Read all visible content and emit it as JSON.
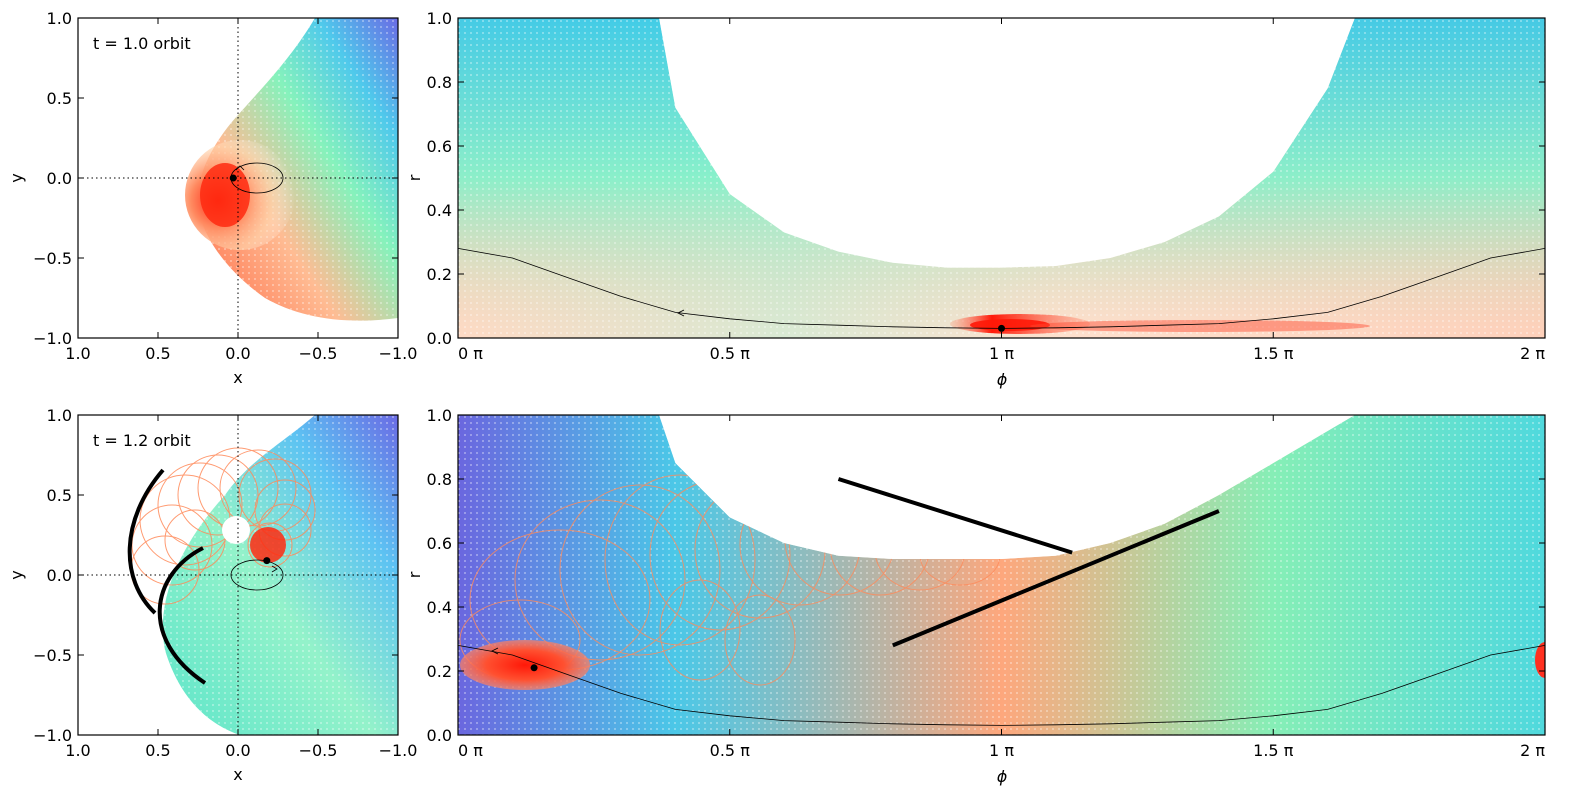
{
  "figure": {
    "description": "Four-panel figure: xy projections (left) and r-phi unwrapped views (right) of a particle cloud at two times"
  },
  "colors": {
    "hot": "#ff2a10",
    "warm": "#ff9a6a",
    "cool": "#60f0b8",
    "cyan": "#30c8e8",
    "blue": "#5a58e8",
    "ring": "#ff8a5a",
    "orbit": "#000000"
  },
  "chart_data": [
    {
      "id": "top-left",
      "type": "scatter",
      "annotation": "t = 1.0 orbit",
      "xlabel": "x",
      "ylabel": "y",
      "xlim": [
        1.0,
        -1.0
      ],
      "ylim": [
        -1.0,
        1.0
      ],
      "xticks": [
        "1.0",
        "0.5",
        "0.0",
        "−0.5",
        "−1.0"
      ],
      "yticks": [
        "−1.0",
        "−0.5",
        "0.0",
        "0.5",
        "1.0"
      ],
      "marker": {
        "x": 0.03,
        "y": 0.0
      },
      "grid": "dotted axes through origin"
    },
    {
      "id": "top-right",
      "type": "scatter",
      "xlabel": "ϕ",
      "ylabel": "r",
      "xlim": [
        0,
        2
      ],
      "ylim": [
        0.0,
        1.0
      ],
      "xticks": [
        "0 π",
        "0.5 π",
        "1 π",
        "1.5 π",
        "2 π"
      ],
      "yticks": [
        "0.0",
        "0.2",
        "0.4",
        "0.6",
        "0.8",
        "1.0"
      ],
      "orbit_line": {
        "phi": [
          0,
          0.1,
          0.2,
          0.3,
          0.4,
          0.5,
          0.6,
          0.7,
          0.8,
          0.9,
          1.0,
          1.1,
          1.2,
          1.3,
          1.4,
          1.5,
          1.6,
          1.7,
          1.8,
          1.9,
          2.0
        ],
        "r": [
          0.28,
          0.25,
          0.19,
          0.13,
          0.08,
          0.06,
          0.045,
          0.04,
          0.035,
          0.032,
          0.03,
          0.032,
          0.035,
          0.04,
          0.045,
          0.06,
          0.08,
          0.13,
          0.19,
          0.25,
          0.28
        ]
      },
      "marker": {
        "phi": 1.0,
        "r": 0.03
      },
      "envelope": {
        "phi": [
          0.37,
          0.4,
          0.5,
          0.6,
          0.7,
          0.8,
          0.9,
          1.0,
          1.1,
          1.2,
          1.3,
          1.4,
          1.5,
          1.6,
          1.65
        ],
        "r": [
          1.0,
          0.72,
          0.45,
          0.33,
          0.27,
          0.235,
          0.22,
          0.22,
          0.225,
          0.25,
          0.3,
          0.38,
          0.52,
          0.78,
          1.0
        ]
      }
    },
    {
      "id": "bottom-left",
      "type": "scatter",
      "annotation": "t = 1.2 orbit",
      "xlabel": "x",
      "ylabel": "y",
      "xlim": [
        1.0,
        -1.0
      ],
      "ylim": [
        -1.0,
        1.0
      ],
      "xticks": [
        "1.0",
        "0.5",
        "0.0",
        "−0.5",
        "−1.0"
      ],
      "yticks": [
        "−1.0",
        "−0.5",
        "0.0",
        "0.5",
        "1.0"
      ],
      "marker": {
        "x": -0.18,
        "y": 0.09
      },
      "grid": "dotted axes through origin"
    },
    {
      "id": "bottom-right",
      "type": "scatter",
      "xlabel": "ϕ",
      "ylabel": "r",
      "xlim": [
        0,
        2
      ],
      "ylim": [
        0.0,
        1.0
      ],
      "xticks": [
        "0 π",
        "0.5 π",
        "1 π",
        "1.5 π",
        "2 π"
      ],
      "yticks": [
        "0.0",
        "0.2",
        "0.4",
        "0.6",
        "0.8",
        "1.0"
      ],
      "orbit_line": {
        "phi": [
          0,
          0.1,
          0.2,
          0.3,
          0.4,
          0.5,
          0.6,
          0.7,
          0.8,
          0.9,
          1.0,
          1.1,
          1.2,
          1.3,
          1.4,
          1.5,
          1.6,
          1.7,
          1.8,
          1.9,
          2.0
        ],
        "r": [
          0.28,
          0.25,
          0.19,
          0.13,
          0.08,
          0.06,
          0.045,
          0.04,
          0.035,
          0.032,
          0.03,
          0.032,
          0.035,
          0.04,
          0.045,
          0.06,
          0.08,
          0.13,
          0.19,
          0.25,
          0.28
        ]
      },
      "marker": {
        "phi": 0.14,
        "r": 0.21
      },
      "envelope": {
        "phi": [
          0.37,
          0.4,
          0.5,
          0.6,
          0.7,
          0.8,
          0.9,
          1.0,
          1.1,
          1.2,
          1.3,
          1.4,
          1.5,
          1.6,
          1.65
        ],
        "r": [
          1.0,
          0.85,
          0.68,
          0.6,
          0.56,
          0.55,
          0.55,
          0.55,
          0.56,
          0.6,
          0.66,
          0.75,
          0.85,
          0.95,
          1.0
        ]
      },
      "bars": [
        {
          "phi": [
            0.7,
            1.13
          ],
          "r": [
            0.8,
            0.57
          ]
        },
        {
          "phi": [
            0.8,
            1.4
          ],
          "r": [
            0.28,
            0.7
          ]
        }
      ]
    }
  ]
}
